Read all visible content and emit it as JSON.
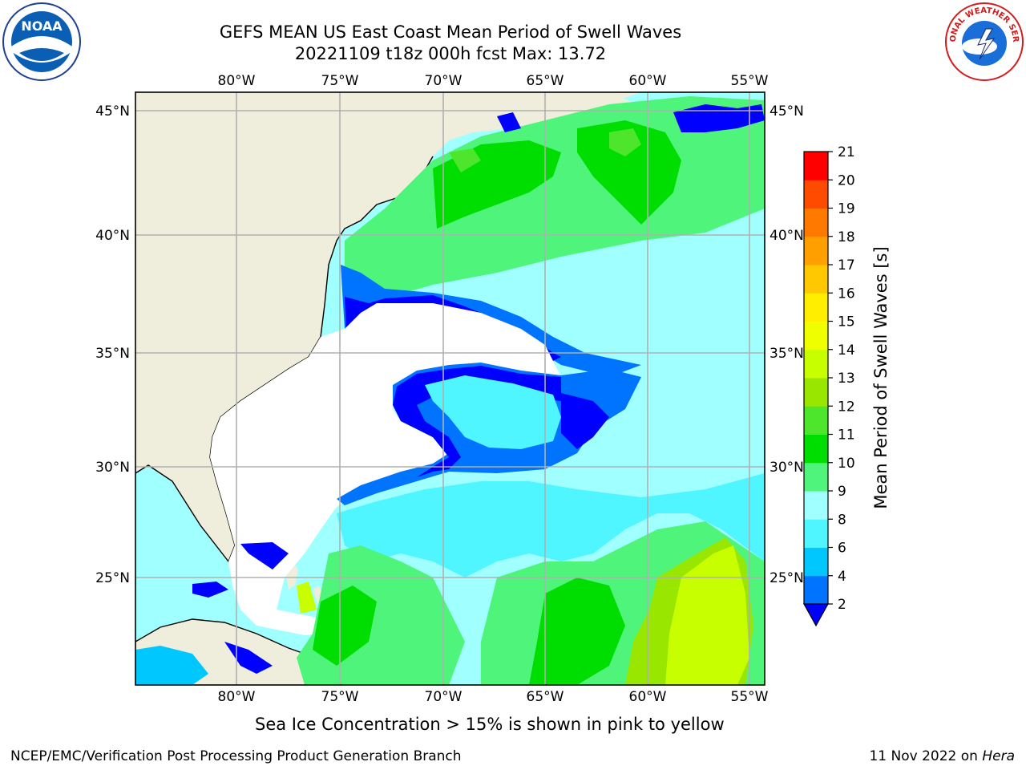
{
  "title": {
    "line1": "GEFS MEAN US East Coast Mean Period of Swell Waves",
    "line2": "20221109 t18z 000h fcst   Max: 13.72"
  },
  "logos": {
    "left": {
      "text": "NOAA",
      "icon": "noaa-logo-icon"
    },
    "right": {
      "text": "NATIONAL WEATHER SERVICE",
      "icon": "nws-logo-icon"
    }
  },
  "map": {
    "lon_labels": [
      "80°W",
      "75°W",
      "70°W",
      "65°W",
      "60°W",
      "55°W"
    ],
    "lat_labels": [
      "45°N",
      "40°N",
      "35°N",
      "30°N",
      "25°N"
    ],
    "lon_range": [
      -85,
      -54
    ],
    "lat_range": [
      20.5,
      46
    ],
    "no_data_color": "#ffffff",
    "land_color": "#efeedc",
    "grid_color": "#b0b0b0"
  },
  "colorbar": {
    "title": "Mean Period of Swell Waves [s]",
    "ticks": [
      "2",
      "4",
      "6",
      "8",
      "9",
      "10",
      "11",
      "12",
      "13",
      "14",
      "15",
      "16",
      "17",
      "18",
      "19",
      "20",
      "21"
    ],
    "under_color": "#0000ff",
    "colors": [
      "#0073ff",
      "#00c8ff",
      "#4ff5ff",
      "#a0ffff",
      "#4ff57a",
      "#00dd00",
      "#4ee62c",
      "#99e600",
      "#c8ff00",
      "#f0ff00",
      "#ffee00",
      "#ffc800",
      "#ffa000",
      "#ff7800",
      "#ff4b00",
      "#ff0000"
    ]
  },
  "notes": {
    "sea_ice": "Sea Ice Concentration > 15% is shown in pink to yellow",
    "credit": "NCEP/EMC/Verification Post Processing Product Generation Branch",
    "date": "11 Nov 2022 on",
    "machine": "Hera"
  }
}
